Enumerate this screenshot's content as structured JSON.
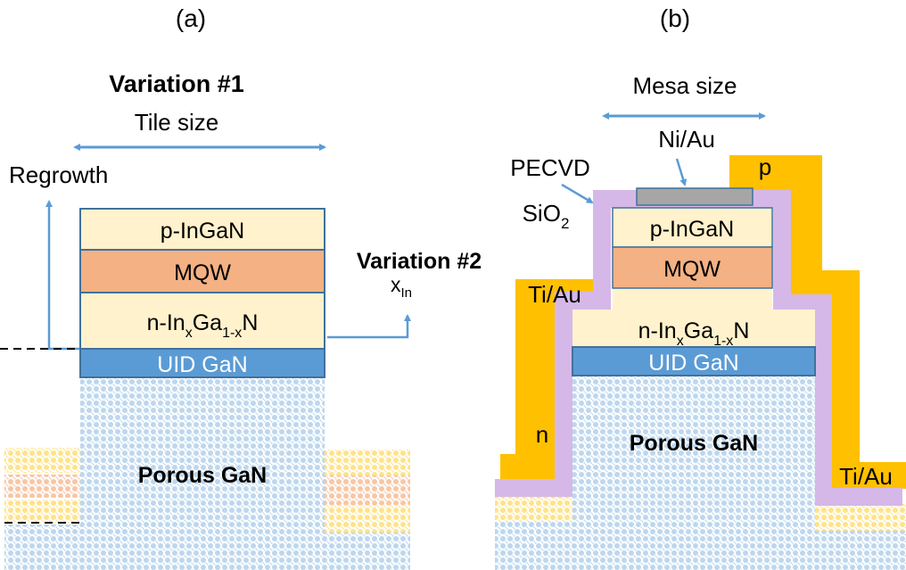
{
  "colors": {
    "p_ingan": "#fff2cc",
    "mqw": "#f4b183",
    "uid_gan": "#5b9bd5",
    "porous": "#bdd7ee",
    "porous_yellow": "#ffe38a",
    "porous_orange": "#f8c6a4",
    "sio2": "#d5b8e8",
    "ti_au": "#ffc000",
    "ni_au": "#a6a6a6",
    "arrow": "#5b9bd5",
    "outline": "#41719c"
  },
  "panel_a": {
    "label": "(a)",
    "variation1": "Variation #1",
    "tile_size": "Tile size",
    "regrowth": "Regrowth",
    "variation2": "Variation #2",
    "x_in": {
      "base": "x",
      "sub": "In"
    },
    "layers": {
      "p_ingan": "p-InGaN",
      "mqw": "MQW",
      "n_ingan": {
        "a": "n-In",
        "sub1": "x",
        "b": "Ga",
        "sub2": "1-x",
        "c": "N"
      },
      "uid_gan": "UID GaN",
      "porous_gan": "Porous GaN"
    }
  },
  "panel_b": {
    "label": "(b)",
    "mesa_size": "Mesa size",
    "ni_au": "Ni/Au",
    "pecvd": "PECVD",
    "sio2": {
      "base": "SiO",
      "sub": "2"
    },
    "ti_au_left": "Ti/Au",
    "ti_au_right": "Ti/Au",
    "n_contact": "n",
    "p_contact": "p",
    "layers": {
      "p_ingan": "p-InGaN",
      "mqw": "MQW",
      "n_ingan": {
        "a": "n-In",
        "sub1": "x",
        "b": "Ga",
        "sub2": "1-x",
        "c": "N"
      },
      "uid_gan": "UID GaN",
      "porous_gan": "Porous GaN"
    }
  }
}
